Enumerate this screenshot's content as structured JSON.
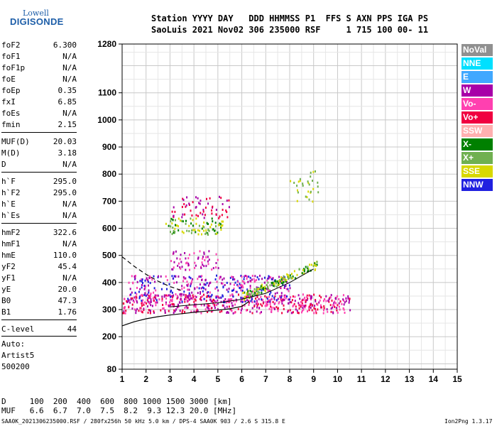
{
  "logo": {
    "line1": "Lowell",
    "line2": "DIGISONDE"
  },
  "header": {
    "line1": "Station YYYY DAY   DDD HHMMSS P1  FFS S AXN PPS IGA PS",
    "line2": "SaoLuis 2021 Nov02 306 235000 RSF     1 715 100 00- 11"
  },
  "params": [
    {
      "label": "foF2",
      "value": "6.300"
    },
    {
      "label": "foF1",
      "value": "N/A"
    },
    {
      "label": "foF1p",
      "value": "N/A"
    },
    {
      "label": "foE",
      "value": "N/A"
    },
    {
      "label": "foEp",
      "value": "0.35"
    },
    {
      "label": "fxI",
      "value": "6.85"
    },
    {
      "label": "foEs",
      "value": "N/A"
    },
    {
      "label": "fmin",
      "value": "2.15"
    },
    {
      "label": "MUF(D)",
      "value": "20.03"
    },
    {
      "label": "M(D)",
      "value": "3.18"
    },
    {
      "label": "D",
      "value": "N/A"
    },
    {
      "label": "h`F",
      "value": "295.0"
    },
    {
      "label": "h`F2",
      "value": "295.0"
    },
    {
      "label": "h`E",
      "value": "N/A"
    },
    {
      "label": "h`Es",
      "value": "N/A"
    },
    {
      "label": "hmF2",
      "value": "322.6"
    },
    {
      "label": "hmF1",
      "value": "N/A"
    },
    {
      "label": "hmE",
      "value": "110.0"
    },
    {
      "label": "yF2",
      "value": "45.4"
    },
    {
      "label": "yF1",
      "value": "N/A"
    },
    {
      "label": "yE",
      "value": "20.0"
    },
    {
      "label": "B0",
      "value": "47.3"
    },
    {
      "label": "B1",
      "value": "1.76"
    },
    {
      "label": "C-level",
      "value": "44"
    }
  ],
  "auto": {
    "line1": "Auto:",
    "line2": "Artist5",
    "line3": "500200"
  },
  "legend": [
    {
      "label": "NoVal",
      "color": "#909090"
    },
    {
      "label": "NNE",
      "color": "#00e0ff"
    },
    {
      "label": "E",
      "color": "#40a8ff"
    },
    {
      "label": "W",
      "color": "#a800a8"
    },
    {
      "label": "Vo-",
      "color": "#ff40b0"
    },
    {
      "label": "Vo+",
      "color": "#f00040"
    },
    {
      "label": "SSW",
      "color": "#ffb0b0"
    },
    {
      "label": "X-",
      "color": "#008000"
    },
    {
      "label": "X+",
      "color": "#70b050"
    },
    {
      "label": "SSE",
      "color": "#d8d800"
    },
    {
      "label": "NNW",
      "color": "#2020e0"
    }
  ],
  "muf_table": {
    "d_line": "D     100  200  400  600  800 1000 1500 3000 [km]",
    "muf_line": "MUF   6.6  6.7  7.0  7.5  8.2  9.3 12.3 20.0 [MHz]"
  },
  "footer": {
    "left": "SAA0K_2021306235000.RSF / 280fx256h 50 kHz 5.0 km / DPS-4 SAA0K 903 / 2.6 S 315.8 E",
    "right": "Ion2Png 1.3.17"
  },
  "chart_data": {
    "type": "scatter",
    "title": "",
    "xlabel": "",
    "ylabel": "",
    "xlim": [
      1,
      15
    ],
    "ylim": [
      80,
      1280
    ],
    "xticks": [
      1,
      2,
      3,
      4,
      5,
      6,
      7,
      8,
      9,
      10,
      11,
      12,
      13,
      14,
      15
    ],
    "yticks": [
      80,
      200,
      300,
      400,
      500,
      600,
      700,
      800,
      900,
      1000,
      1100,
      1280
    ],
    "grid": true,
    "legend_placement": "right",
    "clusters": [
      {
        "name": "F2 trace main",
        "x": [
          1.0,
          10.5
        ],
        "y": [
          290,
          360
        ],
        "colors": [
          "#f00040",
          "#ff40b0",
          "#a800a8"
        ]
      },
      {
        "name": "F2 spread",
        "x": [
          1.2,
          8.0
        ],
        "y": [
          330,
          430
        ],
        "colors": [
          "#a800a8",
          "#2020e0",
          "#ff40b0"
        ]
      },
      {
        "name": "X trace",
        "x": [
          6.0,
          9.2
        ],
        "y": [
          350,
          480
        ],
        "colors": [
          "#d8d800",
          "#70b050",
          "#008000"
        ]
      },
      {
        "name": "Second hop",
        "x": [
          2.8,
          5.2
        ],
        "y": [
          580,
          640
        ],
        "colors": [
          "#70b050",
          "#008000",
          "#d8d800"
        ]
      },
      {
        "name": "Upper scatter",
        "x": [
          3.0,
          5.5
        ],
        "y": [
          640,
          720
        ],
        "colors": [
          "#a800a8",
          "#f00040"
        ]
      },
      {
        "name": "Third band",
        "x": [
          3.0,
          5.0
        ],
        "y": [
          450,
          520
        ],
        "colors": [
          "#a800a8",
          "#ff40b0"
        ]
      },
      {
        "name": "Far sporadic",
        "x": [
          8.0,
          9.2
        ],
        "y": [
          700,
          820
        ],
        "colors": [
          "#d8d800",
          "#70b050"
        ]
      }
    ],
    "profile_curve": {
      "x": [
        1.0,
        1.5,
        2.0,
        2.5,
        3.0,
        3.5,
        4.0,
        4.5,
        5.0,
        5.5,
        6.0,
        6.3
      ],
      "y": [
        240,
        255,
        266,
        274,
        280,
        285,
        290,
        294,
        298,
        303,
        312,
        330
      ]
    },
    "dashed_curve": {
      "x": [
        1.0,
        1.5,
        2.0,
        2.5,
        3.0,
        3.5
      ],
      "y": [
        495,
        460,
        430,
        405,
        385,
        370
      ]
    },
    "trace_line": {
      "x": [
        3.0,
        4.0,
        5.0,
        6.0,
        7.0,
        8.0,
        9.0
      ],
      "y": [
        310,
        318,
        325,
        338,
        360,
        400,
        450
      ]
    }
  }
}
